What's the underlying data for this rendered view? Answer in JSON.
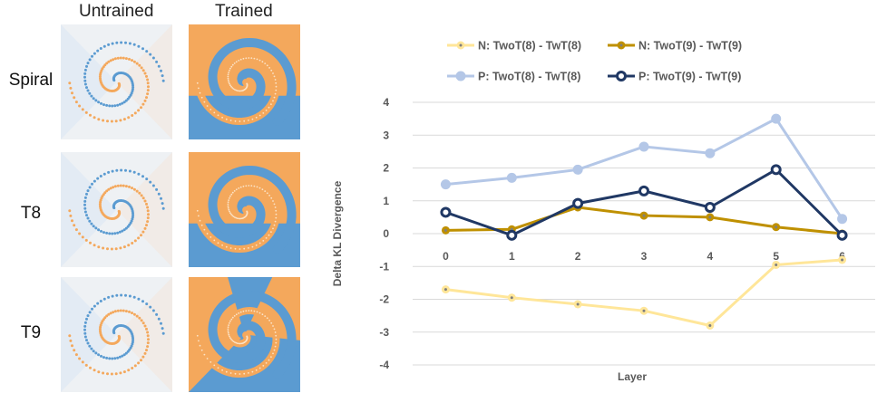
{
  "figure": {
    "columns": [
      "Untrained",
      "Trained"
    ],
    "rows": [
      "Spiral",
      "T8",
      "T9"
    ],
    "colors": {
      "orange": "#f4a85c",
      "blue": "#5b9bd1",
      "untrained_bg": "#eef1f4"
    }
  },
  "chart_data": {
    "type": "line",
    "x": [
      0,
      1,
      2,
      3,
      4,
      5,
      6
    ],
    "xlabel": "Layer",
    "ylabel": "Delta KL Divergence",
    "ylim": [
      -4,
      4
    ],
    "yticks": [
      -4,
      -3,
      -2,
      -1,
      0,
      1,
      2,
      3,
      4
    ],
    "grid": true,
    "legend": "top",
    "series": [
      {
        "name": "N: TwoT(8) - TwT(8)",
        "color": "#ffe699",
        "marker": "small",
        "values": [
          -1.7,
          -1.95,
          -2.15,
          -2.35,
          -2.8,
          -0.95,
          -0.8
        ]
      },
      {
        "name": "N: TwoT(9) - TwT(9)",
        "color": "#bf9000",
        "marker": "small",
        "values": [
          0.1,
          0.13,
          0.8,
          0.55,
          0.5,
          0.2,
          0.0
        ]
      },
      {
        "name": "P: TwoT(8) - TwT(8)",
        "color": "#b4c7e7",
        "marker": "large",
        "values": [
          1.5,
          1.7,
          1.95,
          2.65,
          2.45,
          3.5,
          0.45
        ]
      },
      {
        "name": "P: TwoT(9) - TwT(9)",
        "color": "#203864",
        "marker": "ring",
        "values": [
          0.65,
          -0.05,
          0.92,
          1.3,
          0.8,
          1.95,
          -0.05
        ]
      }
    ]
  }
}
